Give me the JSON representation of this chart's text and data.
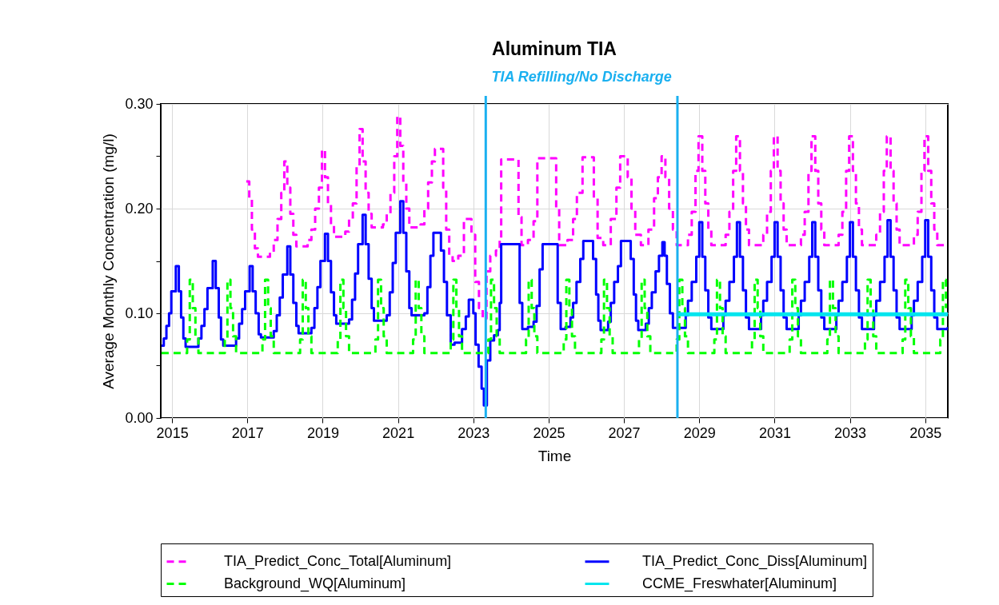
{
  "chart_data": {
    "type": "step",
    "title": "Aluminum TIA",
    "xlabel": "Time",
    "ylabel": "Average Monthly Concentration (mg/l)",
    "xlim": [
      2014.7,
      2035.6
    ],
    "xticks": [
      2015,
      2017,
      2019,
      2021,
      2023,
      2025,
      2027,
      2029,
      2031,
      2033,
      2035
    ],
    "ylim": [
      0,
      0.3
    ],
    "yticks": [
      {
        "value": 0,
        "label": "0.00"
      },
      {
        "value": 0.05,
        "label": null
      },
      {
        "value": 0.1,
        "label": "0.10"
      },
      {
        "value": 0.15,
        "label": null
      },
      {
        "value": 0.2,
        "label": "0.20"
      },
      {
        "value": 0.25,
        "label": null
      },
      {
        "value": 0.3,
        "label": "0.30"
      }
    ],
    "grid": true,
    "legend": "bottom",
    "ref_lines": [
      {
        "axis": "x",
        "value": 2023.33,
        "color": "#1ab0f0"
      },
      {
        "axis": "x",
        "value": 2028.42,
        "color": "#1ab0f0"
      }
    ],
    "annotations": [
      "TIA Refilling/No Discharge"
    ],
    "series": [
      {
        "name": "TIA_Predict_Conc_Total[Aluminum]",
        "color": "#ff00ff",
        "line_style": "dashed",
        "x": [
          2016.97,
          2017.05,
          2017.12,
          2017.2,
          2017.28,
          2017.6,
          2017.7,
          2017.8,
          2017.9,
          2017.98,
          2018.06,
          2018.14,
          2018.22,
          2018.3,
          2018.6,
          2018.7,
          2018.8,
          2018.9,
          2018.98,
          2019.06,
          2019.14,
          2019.22,
          2019.3,
          2019.6,
          2019.7,
          2019.8,
          2019.9,
          2019.98,
          2020.06,
          2020.14,
          2020.22,
          2020.3,
          2020.6,
          2020.7,
          2020.8,
          2020.9,
          2020.98,
          2021.06,
          2021.14,
          2021.22,
          2021.3,
          2021.6,
          2021.7,
          2021.8,
          2021.9,
          2021.98,
          2022.2,
          2022.28,
          2022.36,
          2022.45,
          2022.6,
          2022.75,
          2022.95,
          2023.05,
          2023.15,
          2023.25,
          2023.35,
          2023.45,
          2023.6,
          2023.7,
          2023.74,
          2024.2,
          2024.28,
          2024.45,
          2024.6,
          2024.7,
          2025.2,
          2025.28,
          2025.5,
          2025.65,
          2025.75,
          2025.9,
          2026.2,
          2026.3,
          2026.45,
          2026.65,
          2026.8,
          2026.9,
          2027.1,
          2027.2,
          2027.3,
          2027.45,
          2027.65,
          2027.8,
          2027.9,
          2028.0,
          2028.1,
          2028.2,
          2028.3,
          2028.4,
          2028.7,
          2028.8,
          2028.9,
          2028.98,
          2029.08,
          2029.16,
          2029.24,
          2029.32,
          2029.7,
          2029.8,
          2029.9,
          2029.98,
          2030.08,
          2030.16,
          2030.24,
          2030.32,
          2030.7,
          2030.8,
          2030.9,
          2030.98,
          2031.08,
          2031.16,
          2031.24,
          2031.32,
          2031.7,
          2031.8,
          2031.9,
          2031.98,
          2032.08,
          2032.16,
          2032.24,
          2032.32,
          2032.7,
          2032.8,
          2032.9,
          2032.98,
          2033.08,
          2033.16,
          2033.24,
          2033.32,
          2033.7,
          2033.8,
          2033.9,
          2033.98,
          2034.08,
          2034.16,
          2034.24,
          2034.32,
          2034.7,
          2034.8,
          2034.9,
          2034.98,
          2035.08,
          2035.16,
          2035.24,
          2035.32,
          2035.6
        ],
        "values": [
          0.226,
          0.21,
          0.18,
          0.162,
          0.154,
          0.158,
          0.17,
          0.19,
          0.215,
          0.245,
          0.22,
          0.195,
          0.175,
          0.164,
          0.17,
          0.18,
          0.2,
          0.22,
          0.256,
          0.23,
          0.205,
          0.185,
          0.173,
          0.178,
          0.19,
          0.205,
          0.24,
          0.276,
          0.245,
          0.215,
          0.195,
          0.182,
          0.185,
          0.195,
          0.215,
          0.25,
          0.288,
          0.26,
          0.225,
          0.2,
          0.182,
          0.185,
          0.2,
          0.225,
          0.245,
          0.257,
          0.22,
          0.18,
          0.155,
          0.15,
          0.155,
          0.19,
          0.175,
          0.13,
          0.105,
          0.095,
          0.14,
          0.155,
          0.16,
          0.17,
          0.247,
          0.192,
          0.165,
          0.17,
          0.188,
          0.248,
          0.2,
          0.165,
          0.17,
          0.19,
          0.215,
          0.249,
          0.21,
          0.172,
          0.165,
          0.19,
          0.22,
          0.25,
          0.23,
          0.2,
          0.175,
          0.165,
          0.18,
          0.21,
          0.23,
          0.25,
          0.23,
          0.2,
          0.18,
          0.165,
          0.175,
          0.197,
          0.236,
          0.269,
          0.236,
          0.205,
          0.18,
          0.165,
          0.175,
          0.197,
          0.236,
          0.269,
          0.236,
          0.205,
          0.18,
          0.165,
          0.175,
          0.197,
          0.236,
          0.269,
          0.236,
          0.205,
          0.18,
          0.165,
          0.175,
          0.197,
          0.236,
          0.269,
          0.236,
          0.205,
          0.18,
          0.165,
          0.175,
          0.197,
          0.236,
          0.269,
          0.236,
          0.205,
          0.18,
          0.165,
          0.175,
          0.197,
          0.236,
          0.269,
          0.236,
          0.205,
          0.18,
          0.165,
          0.175,
          0.197,
          0.236,
          0.269,
          0.236,
          0.205,
          0.18,
          0.165,
          0.165
        ]
      },
      {
        "name": "TIA_Predict_Conc_Diss[Aluminum]",
        "color": "#0000ff",
        "line_style": "solid",
        "x": [
          2014.72,
          2014.78,
          2014.85,
          2014.92,
          2014.98,
          2015.1,
          2015.18,
          2015.24,
          2015.3,
          2015.36,
          2015.7,
          2015.78,
          2015.86,
          2015.94,
          2016.08,
          2016.16,
          2016.24,
          2016.3,
          2016.36,
          2016.7,
          2016.78,
          2016.86,
          2016.94,
          2017.06,
          2017.14,
          2017.22,
          2017.3,
          2017.36,
          2017.7,
          2017.78,
          2017.86,
          2017.94,
          2018.06,
          2018.14,
          2018.22,
          2018.3,
          2018.36,
          2018.7,
          2018.78,
          2018.86,
          2018.94,
          2019.06,
          2019.14,
          2019.22,
          2019.3,
          2019.36,
          2019.7,
          2019.78,
          2019.86,
          2019.94,
          2020.06,
          2020.14,
          2020.22,
          2020.3,
          2020.36,
          2020.7,
          2020.78,
          2020.86,
          2020.94,
          2021.06,
          2021.14,
          2021.22,
          2021.3,
          2021.36,
          2021.7,
          2021.78,
          2021.86,
          2021.94,
          2022.14,
          2022.22,
          2022.3,
          2022.4,
          2022.5,
          2022.7,
          2022.8,
          2022.88,
          2023.0,
          2023.06,
          2023.14,
          2023.22,
          2023.28,
          2023.36,
          2023.45,
          2023.55,
          2023.65,
          2023.7,
          2023.74,
          2024.23,
          2024.3,
          2024.45,
          2024.6,
          2024.68,
          2024.76,
          2024.84,
          2025.24,
          2025.32,
          2025.45,
          2025.58,
          2025.65,
          2025.74,
          2025.84,
          2025.92,
          2026.18,
          2026.26,
          2026.32,
          2026.38,
          2026.58,
          2026.65,
          2026.74,
          2026.84,
          2026.92,
          2027.18,
          2027.26,
          2027.32,
          2027.38,
          2027.58,
          2027.66,
          2027.74,
          2027.84,
          2027.93,
          2028.02,
          2028.08,
          2028.14,
          2028.22,
          2028.3,
          2028.64,
          2028.7,
          2028.8,
          2028.92,
          2029.0,
          2029.08,
          2029.16,
          2029.24,
          2029.32,
          2029.64,
          2029.7,
          2029.8,
          2029.92,
          2030.0,
          2030.08,
          2030.16,
          2030.24,
          2030.32,
          2030.64,
          2030.7,
          2030.8,
          2030.92,
          2031.0,
          2031.08,
          2031.16,
          2031.24,
          2031.32,
          2031.64,
          2031.7,
          2031.8,
          2031.92,
          2032.0,
          2032.08,
          2032.16,
          2032.24,
          2032.32,
          2032.64,
          2032.7,
          2032.8,
          2032.92,
          2033.0,
          2033.08,
          2033.16,
          2033.24,
          2033.32,
          2033.64,
          2033.7,
          2033.8,
          2033.92,
          2034.0,
          2034.08,
          2034.16,
          2034.24,
          2034.32,
          2034.64,
          2034.7,
          2034.8,
          2034.92,
          2035.0,
          2035.08,
          2035.16,
          2035.24,
          2035.32,
          2035.6
        ],
        "values": [
          0.069,
          0.076,
          0.088,
          0.1,
          0.121,
          0.145,
          0.121,
          0.096,
          0.076,
          0.068,
          0.076,
          0.088,
          0.104,
          0.124,
          0.15,
          0.124,
          0.096,
          0.075,
          0.069,
          0.076,
          0.09,
          0.104,
          0.121,
          0.145,
          0.121,
          0.1,
          0.08,
          0.077,
          0.083,
          0.098,
          0.115,
          0.137,
          0.164,
          0.137,
          0.11,
          0.088,
          0.081,
          0.086,
          0.105,
          0.125,
          0.15,
          0.176,
          0.15,
          0.12,
          0.098,
          0.09,
          0.094,
          0.113,
          0.138,
          0.166,
          0.194,
          0.166,
          0.133,
          0.105,
          0.093,
          0.098,
          0.12,
          0.148,
          0.177,
          0.207,
          0.177,
          0.14,
          0.105,
          0.098,
          0.1,
          0.125,
          0.155,
          0.177,
          0.16,
          0.13,
          0.098,
          0.07,
          0.072,
          0.085,
          0.097,
          0.113,
          0.1,
          0.07,
          0.049,
          0.028,
          0.012,
          0.055,
          0.074,
          0.079,
          0.084,
          0.11,
          0.166,
          0.11,
          0.085,
          0.087,
          0.092,
          0.107,
          0.142,
          0.166,
          0.11,
          0.085,
          0.087,
          0.096,
          0.11,
          0.13,
          0.152,
          0.169,
          0.152,
          0.118,
          0.093,
          0.084,
          0.092,
          0.11,
          0.13,
          0.145,
          0.169,
          0.152,
          0.118,
          0.093,
          0.084,
          0.09,
          0.105,
          0.12,
          0.14,
          0.155,
          0.168,
          0.155,
          0.128,
          0.1,
          0.086,
          0.098,
          0.112,
          0.13,
          0.154,
          0.187,
          0.154,
          0.122,
          0.096,
          0.085,
          0.098,
          0.112,
          0.13,
          0.154,
          0.187,
          0.154,
          0.122,
          0.096,
          0.085,
          0.098,
          0.112,
          0.13,
          0.154,
          0.187,
          0.154,
          0.122,
          0.096,
          0.085,
          0.098,
          0.112,
          0.13,
          0.154,
          0.187,
          0.154,
          0.122,
          0.096,
          0.085,
          0.098,
          0.112,
          0.13,
          0.154,
          0.187,
          0.154,
          0.122,
          0.096,
          0.085,
          0.098,
          0.112,
          0.13,
          0.154,
          0.189,
          0.154,
          0.122,
          0.096,
          0.085,
          0.098,
          0.112,
          0.13,
          0.154,
          0.189,
          0.154,
          0.122,
          0.096,
          0.085,
          0.087
        ]
      },
      {
        "name": "Background_WQ[Aluminum]",
        "color": "#00ff00",
        "line_style": "dashed",
        "x": [
          2014.72,
          2015.4,
          2015.47,
          2015.55,
          2015.62,
          2015.7,
          2016.4,
          2016.47,
          2016.55,
          2016.62,
          2016.7,
          2017.4,
          2017.47,
          2017.55,
          2017.62,
          2017.7,
          2018.4,
          2018.47,
          2018.55,
          2018.62,
          2018.7,
          2019.4,
          2019.47,
          2019.55,
          2019.62,
          2019.7,
          2020.4,
          2020.47,
          2020.55,
          2020.62,
          2020.7,
          2021.4,
          2021.47,
          2021.55,
          2021.62,
          2021.7,
          2022.4,
          2022.47,
          2022.55,
          2022.62,
          2022.7,
          2023.4,
          2023.47,
          2023.55,
          2023.62,
          2023.7,
          2024.4,
          2024.47,
          2024.55,
          2024.62,
          2024.7,
          2025.4,
          2025.47,
          2025.55,
          2025.62,
          2025.7,
          2026.4,
          2026.47,
          2026.55,
          2026.62,
          2026.7,
          2027.4,
          2027.47,
          2027.55,
          2027.62,
          2027.7,
          2028.4,
          2028.47,
          2028.55,
          2028.62,
          2028.7,
          2029.4,
          2029.47,
          2029.55,
          2029.62,
          2029.7,
          2030.4,
          2030.47,
          2030.55,
          2030.62,
          2030.7,
          2031.4,
          2031.47,
          2031.55,
          2031.62,
          2031.7,
          2032.4,
          2032.47,
          2032.55,
          2032.62,
          2032.7,
          2033.4,
          2033.47,
          2033.55,
          2033.62,
          2033.7,
          2034.4,
          2034.47,
          2034.55,
          2034.62,
          2034.7,
          2035.4,
          2035.47,
          2035.55
        ],
        "values": [
          0.062,
          0.075,
          0.132,
          0.105,
          0.078,
          0.062,
          0.075,
          0.132,
          0.105,
          0.078,
          0.062,
          0.075,
          0.132,
          0.105,
          0.078,
          0.062,
          0.075,
          0.132,
          0.105,
          0.078,
          0.062,
          0.075,
          0.132,
          0.105,
          0.078,
          0.062,
          0.075,
          0.132,
          0.105,
          0.078,
          0.062,
          0.075,
          0.132,
          0.105,
          0.078,
          0.062,
          0.075,
          0.132,
          0.105,
          0.078,
          0.062,
          0.075,
          0.132,
          0.105,
          0.078,
          0.062,
          0.075,
          0.132,
          0.105,
          0.078,
          0.062,
          0.075,
          0.132,
          0.105,
          0.078,
          0.062,
          0.075,
          0.132,
          0.105,
          0.078,
          0.062,
          0.075,
          0.132,
          0.105,
          0.078,
          0.062,
          0.075,
          0.132,
          0.105,
          0.078,
          0.062,
          0.075,
          0.132,
          0.105,
          0.078,
          0.062,
          0.075,
          0.132,
          0.105,
          0.078,
          0.062,
          0.075,
          0.132,
          0.105,
          0.078,
          0.062,
          0.075,
          0.132,
          0.105,
          0.078,
          0.062,
          0.075,
          0.132,
          0.105,
          0.078,
          0.062,
          0.075,
          0.132,
          0.105,
          0.078,
          0.062,
          0.075,
          0.132,
          0.105
        ]
      },
      {
        "name": "CCME_Freswhater[Aluminum]",
        "color": "#00e5ee",
        "type": "line",
        "line_style": "solid",
        "x": [
          2028.42,
          2035.6
        ],
        "values": [
          0.099,
          0.099
        ]
      }
    ]
  }
}
